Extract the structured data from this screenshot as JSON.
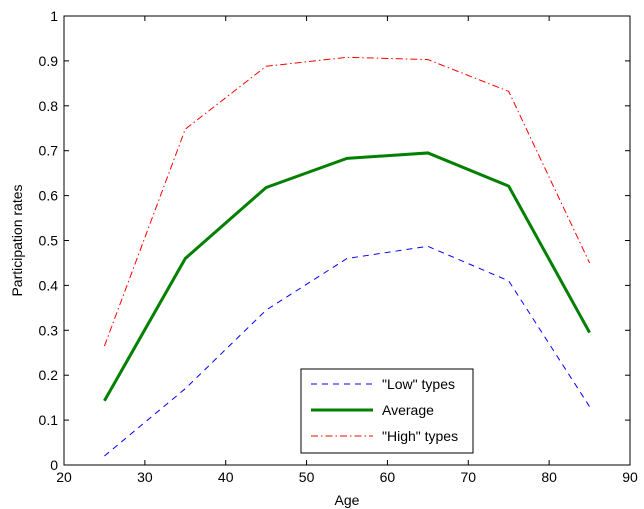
{
  "chart_data": {
    "type": "line",
    "title": "",
    "xlabel": "Age",
    "ylabel": "Participation rates",
    "xlim": [
      20,
      90
    ],
    "ylim": [
      0,
      1
    ],
    "xticks": [
      20,
      30,
      40,
      50,
      60,
      70,
      80,
      90
    ],
    "yticks": [
      0,
      0.1,
      0.2,
      0.3,
      0.4,
      0.5,
      0.6,
      0.7,
      0.8,
      0.9,
      1
    ],
    "ytick_labels": [
      "0",
      "0.1",
      "0.2",
      "0.3",
      "0.4",
      "0.5",
      "0.6",
      "0.7",
      "0.8",
      "0.9",
      "1"
    ],
    "grid": false,
    "legend_position": "bottom-center",
    "x": [
      25,
      35,
      45,
      55,
      65,
      75,
      85
    ],
    "series": [
      {
        "name": "\"Low\" types",
        "values": [
          0.02,
          0.17,
          0.345,
          0.46,
          0.487,
          0.41,
          0.13
        ],
        "color": "#0000ff",
        "style": "dashed"
      },
      {
        "name": "Average",
        "values": [
          0.143,
          0.46,
          0.618,
          0.683,
          0.695,
          0.621,
          0.295
        ],
        "color": "#008000",
        "style": "solid-thick"
      },
      {
        "name": "\"High\" types",
        "values": [
          0.265,
          0.748,
          0.888,
          0.908,
          0.903,
          0.832,
          0.45
        ],
        "color": "#ff0000",
        "style": "dash-dot"
      }
    ]
  }
}
